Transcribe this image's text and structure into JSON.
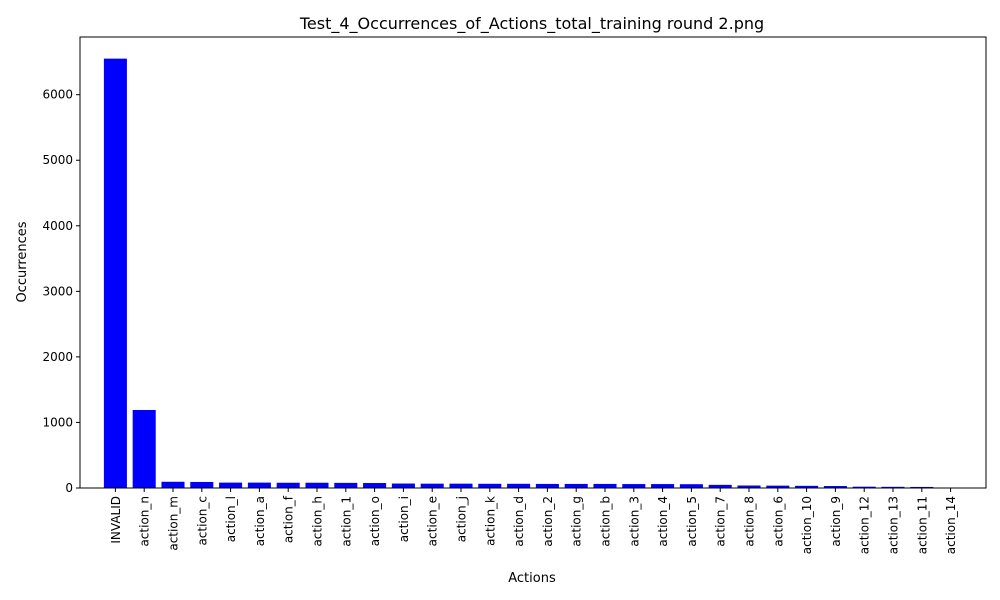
{
  "chart_data": {
    "type": "bar",
    "title": "Test_4_Occurrences_of_Actions_total_training round 2.png",
    "xlabel": "Actions",
    "ylabel": "Occurrences",
    "ylim": [
      0,
      6880
    ],
    "yticks": [
      0,
      1000,
      2000,
      3000,
      4000,
      5000,
      6000
    ],
    "grid": false,
    "bar_color": "#0000ff",
    "categories": [
      "INVALID",
      "action_n",
      "action_m",
      "action_c",
      "action_l",
      "action_a",
      "action_f",
      "action_h",
      "action_1",
      "action_o",
      "action_i",
      "action_e",
      "action_j",
      "action_k",
      "action_d",
      "action_2",
      "action_g",
      "action_b",
      "action_3",
      "action_4",
      "action_5",
      "action_7",
      "action_8",
      "action_6",
      "action_10",
      "action_9",
      "action_12",
      "action_13",
      "action_11",
      "action_14"
    ],
    "values": [
      6550,
      1190,
      95,
      92,
      82,
      82,
      80,
      80,
      78,
      76,
      68,
      66,
      66,
      64,
      64,
      62,
      62,
      62,
      60,
      60,
      58,
      48,
      38,
      36,
      33,
      30,
      20,
      18,
      16,
      4
    ]
  }
}
